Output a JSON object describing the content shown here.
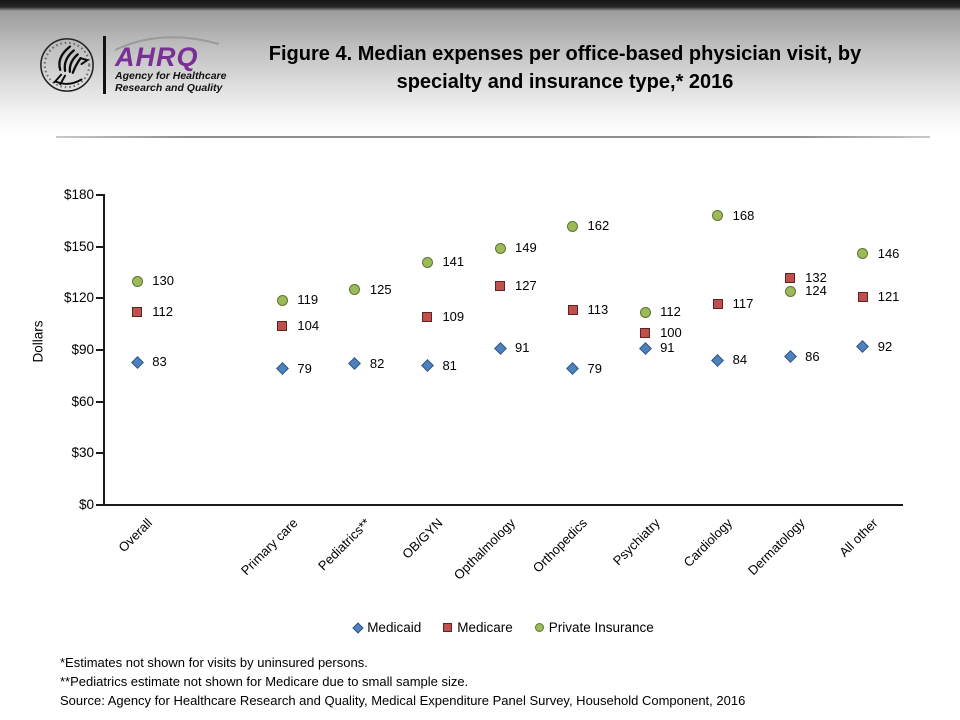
{
  "header": {
    "title_line1": "Figure 4. Median expenses per office-based physician visit, by",
    "title_line2": "specialty and insurance type,* 2016",
    "logo": {
      "wordmark": "AHRQ",
      "tagline1": "Agency for Healthcare",
      "tagline2": "Research and Quality"
    }
  },
  "chart_data": {
    "type": "scatter",
    "title": "Figure 4. Median expenses per office-based physician visit, by specialty and insurance type, 2016",
    "categories": [
      "Overall",
      "Primary care",
      "Pediatrics**",
      "OB/GYN",
      "Opthalmology",
      "Orthopedics",
      "Psychiatry",
      "Cardiology",
      "Dermatology",
      "All other"
    ],
    "series": [
      {
        "name": "Medicaid",
        "marker": "diamond",
        "color": "#4F81BD",
        "border_color": "#2F5789",
        "values": [
          83,
          79,
          82,
          81,
          91,
          79,
          91,
          84,
          86,
          92
        ]
      },
      {
        "name": "Medicare",
        "marker": "square",
        "color": "#C0504D",
        "border_color": "#5E2423",
        "values": [
          112,
          104,
          null,
          109,
          127,
          113,
          100,
          117,
          132,
          121
        ]
      },
      {
        "name": "Private Insurance",
        "marker": "circle",
        "color": "#9BBB59",
        "border_color": "#5E7530",
        "values": [
          130,
          119,
          125,
          141,
          149,
          162,
          112,
          168,
          124,
          146
        ]
      }
    ],
    "xlabel": "",
    "ylabel": "Dollars",
    "ylim": [
      0,
      180
    ],
    "ytick_step": 30,
    "ytick_prefix": "$",
    "grid": false,
    "legend_position": "bottom",
    "data_labels": true
  },
  "footnotes": [
    "*Estimates not shown for visits by uninsured persons.",
    "**Pediatrics estimate not shown for Medicare due to small sample size.",
    "Source: Agency for Healthcare Research and Quality, Medical Expenditure Panel Survey, Household Component, 2016"
  ]
}
